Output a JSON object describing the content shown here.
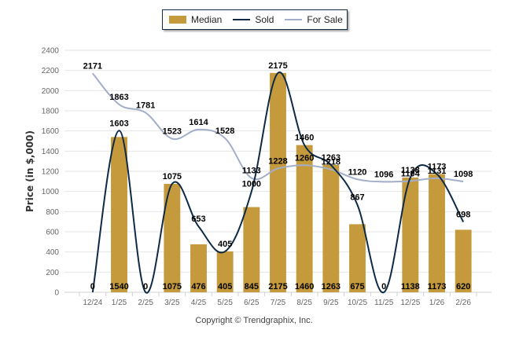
{
  "chart_data": {
    "type": "bar",
    "title": "",
    "xlabel": "",
    "ylabel": "Price (in $,000)",
    "ylim": [
      0,
      2400
    ],
    "yticks": [
      0,
      200,
      400,
      600,
      800,
      1000,
      1200,
      1400,
      1600,
      1800,
      2000,
      2200,
      2400
    ],
    "grid": true,
    "legend_position": "top-center",
    "categories": [
      "12/24",
      "1/25",
      "2/25",
      "3/25",
      "4/25",
      "5/25",
      "6/25",
      "7/25",
      "8/25",
      "9/25",
      "10/25",
      "11/25",
      "12/25",
      "1/26",
      "2/26"
    ],
    "series": [
      {
        "name": "Median",
        "type": "bar",
        "color": "#c49a3c",
        "values": [
          0,
          1540,
          0,
          1075,
          476,
          405,
          845,
          2175,
          1460,
          1263,
          675,
          0,
          1138,
          1173,
          620
        ]
      },
      {
        "name": "Sold",
        "type": "line",
        "color": "#0e2a47",
        "values": [
          0,
          1603,
          0,
          1075,
          653,
          405,
          1000,
          2175,
          1460,
          1263,
          867,
          0,
          1138,
          1173,
          698
        ]
      },
      {
        "name": "For Sale",
        "type": "line",
        "color": "#a3aec8",
        "values": [
          2171,
          1863,
          1781,
          1523,
          1614,
          1528,
          1133,
          1228,
          1260,
          1218,
          1120,
          1096,
          1104,
          1131,
          1098
        ]
      }
    ]
  },
  "legend": {
    "median": "Median",
    "sold": "Sold",
    "for_sale": "For Sale"
  },
  "footer": {
    "copyright": "Copyright © Trendgraphix, Inc."
  }
}
